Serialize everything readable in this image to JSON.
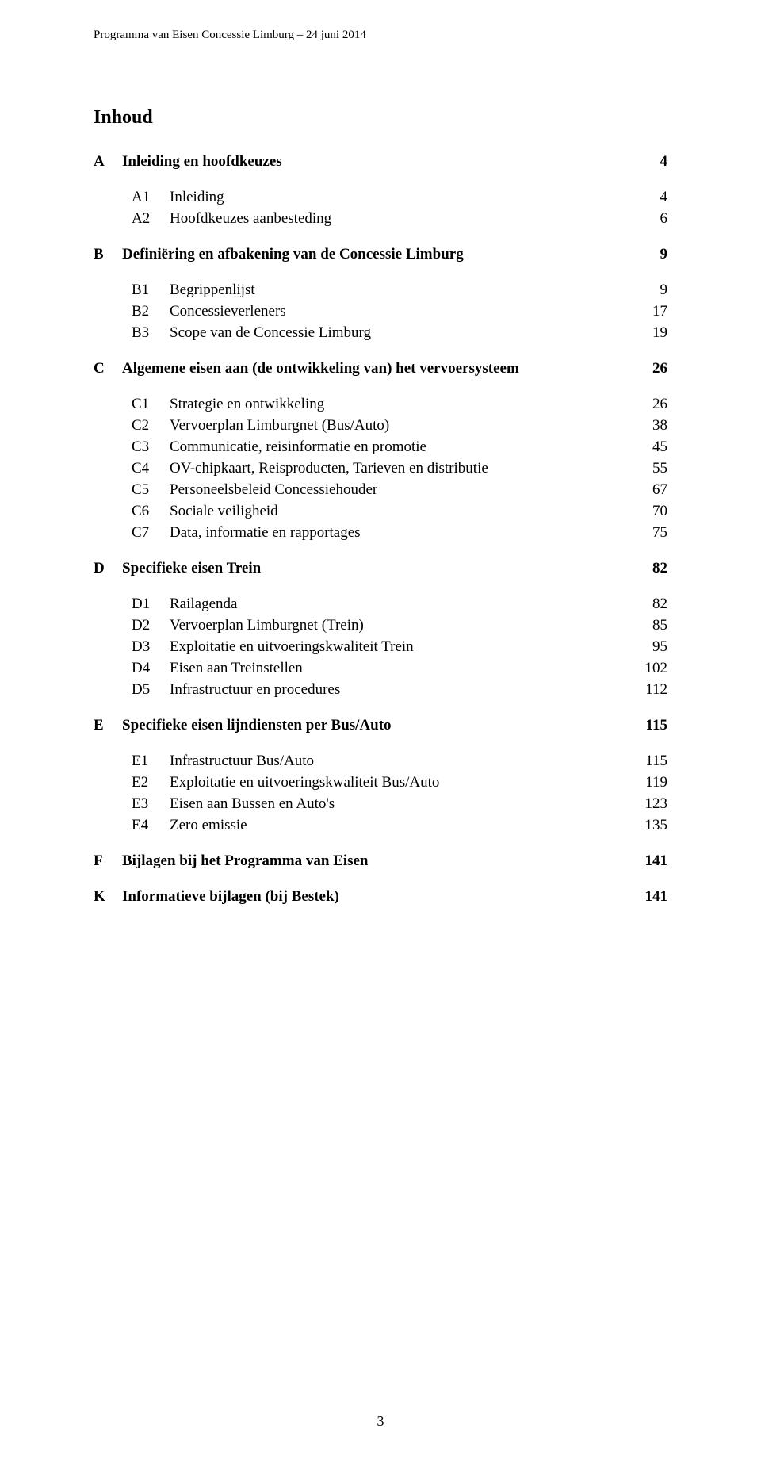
{
  "running_header": "Programma van Eisen Concessie Limburg – 24 juni 2014",
  "doc_title": "Inhoud",
  "page_number": "3",
  "toc": [
    {
      "type": "section",
      "letter": "A",
      "label": "Inleiding en hoofdkeuzes",
      "page": "4"
    },
    {
      "type": "sub",
      "code": "A1",
      "label": "Inleiding",
      "page": "4"
    },
    {
      "type": "sub",
      "code": "A2",
      "label": "Hoofdkeuzes aanbesteding",
      "page": "6"
    },
    {
      "type": "section",
      "letter": "B",
      "label": "Definiëring en afbakening van de Concessie Limburg",
      "page": "9"
    },
    {
      "type": "sub",
      "code": "B1",
      "label": "Begrippenlijst",
      "page": "9"
    },
    {
      "type": "sub",
      "code": "B2",
      "label": "Concessieverleners",
      "page": "17"
    },
    {
      "type": "sub",
      "code": "B3",
      "label": "Scope van de Concessie Limburg",
      "page": "19"
    },
    {
      "type": "section",
      "letter": "C",
      "label": "Algemene eisen aan (de ontwikkeling van) het vervoersysteem",
      "page": "26"
    },
    {
      "type": "sub",
      "code": "C1",
      "label": "Strategie en ontwikkeling",
      "page": "26"
    },
    {
      "type": "sub",
      "code": "C2",
      "label": "Vervoerplan Limburgnet (Bus/Auto)",
      "page": "38"
    },
    {
      "type": "sub",
      "code": "C3",
      "label": "Communicatie, reisinformatie en promotie",
      "page": "45"
    },
    {
      "type": "sub",
      "code": "C4",
      "label": "OV-chipkaart, Reisproducten, Tarieven en distributie",
      "page": "55"
    },
    {
      "type": "sub",
      "code": "C5",
      "label": "Personeelsbeleid Concessiehouder",
      "page": "67"
    },
    {
      "type": "sub",
      "code": "C6",
      "label": "Sociale veiligheid",
      "page": "70"
    },
    {
      "type": "sub",
      "code": "C7",
      "label": "Data, informatie en rapportages",
      "page": "75"
    },
    {
      "type": "section",
      "letter": "D",
      "label": "Specifieke eisen Trein",
      "page": "82"
    },
    {
      "type": "sub",
      "code": "D1",
      "label": "Railagenda",
      "page": "82"
    },
    {
      "type": "sub",
      "code": "D2",
      "label": "Vervoerplan Limburgnet (Trein)",
      "page": "85"
    },
    {
      "type": "sub",
      "code": "D3",
      "label": "Exploitatie en uitvoeringskwaliteit Trein",
      "page": "95"
    },
    {
      "type": "sub",
      "code": "D4",
      "label": "Eisen aan Treinstellen",
      "page": "102"
    },
    {
      "type": "sub",
      "code": "D5",
      "label": "Infrastructuur en procedures",
      "page": "112"
    },
    {
      "type": "section",
      "letter": "E",
      "label": "Specifieke eisen lijndiensten per Bus/Auto",
      "page": "115"
    },
    {
      "type": "sub",
      "code": "E1",
      "label": "Infrastructuur Bus/Auto",
      "page": "115"
    },
    {
      "type": "sub",
      "code": "E2",
      "label": "Exploitatie en uitvoeringskwaliteit Bus/Auto",
      "page": "119"
    },
    {
      "type": "sub",
      "code": "E3",
      "label": "Eisen aan Bussen en Auto's",
      "page": "123"
    },
    {
      "type": "sub",
      "code": "E4",
      "label": "Zero emissie",
      "page": "135"
    },
    {
      "type": "section",
      "letter": "F",
      "label": "Bijlagen bij het Programma van Eisen",
      "page": "141"
    },
    {
      "type": "section",
      "letter": "K",
      "label": "Informatieve bijlagen (bij Bestek)",
      "page": "141"
    }
  ]
}
